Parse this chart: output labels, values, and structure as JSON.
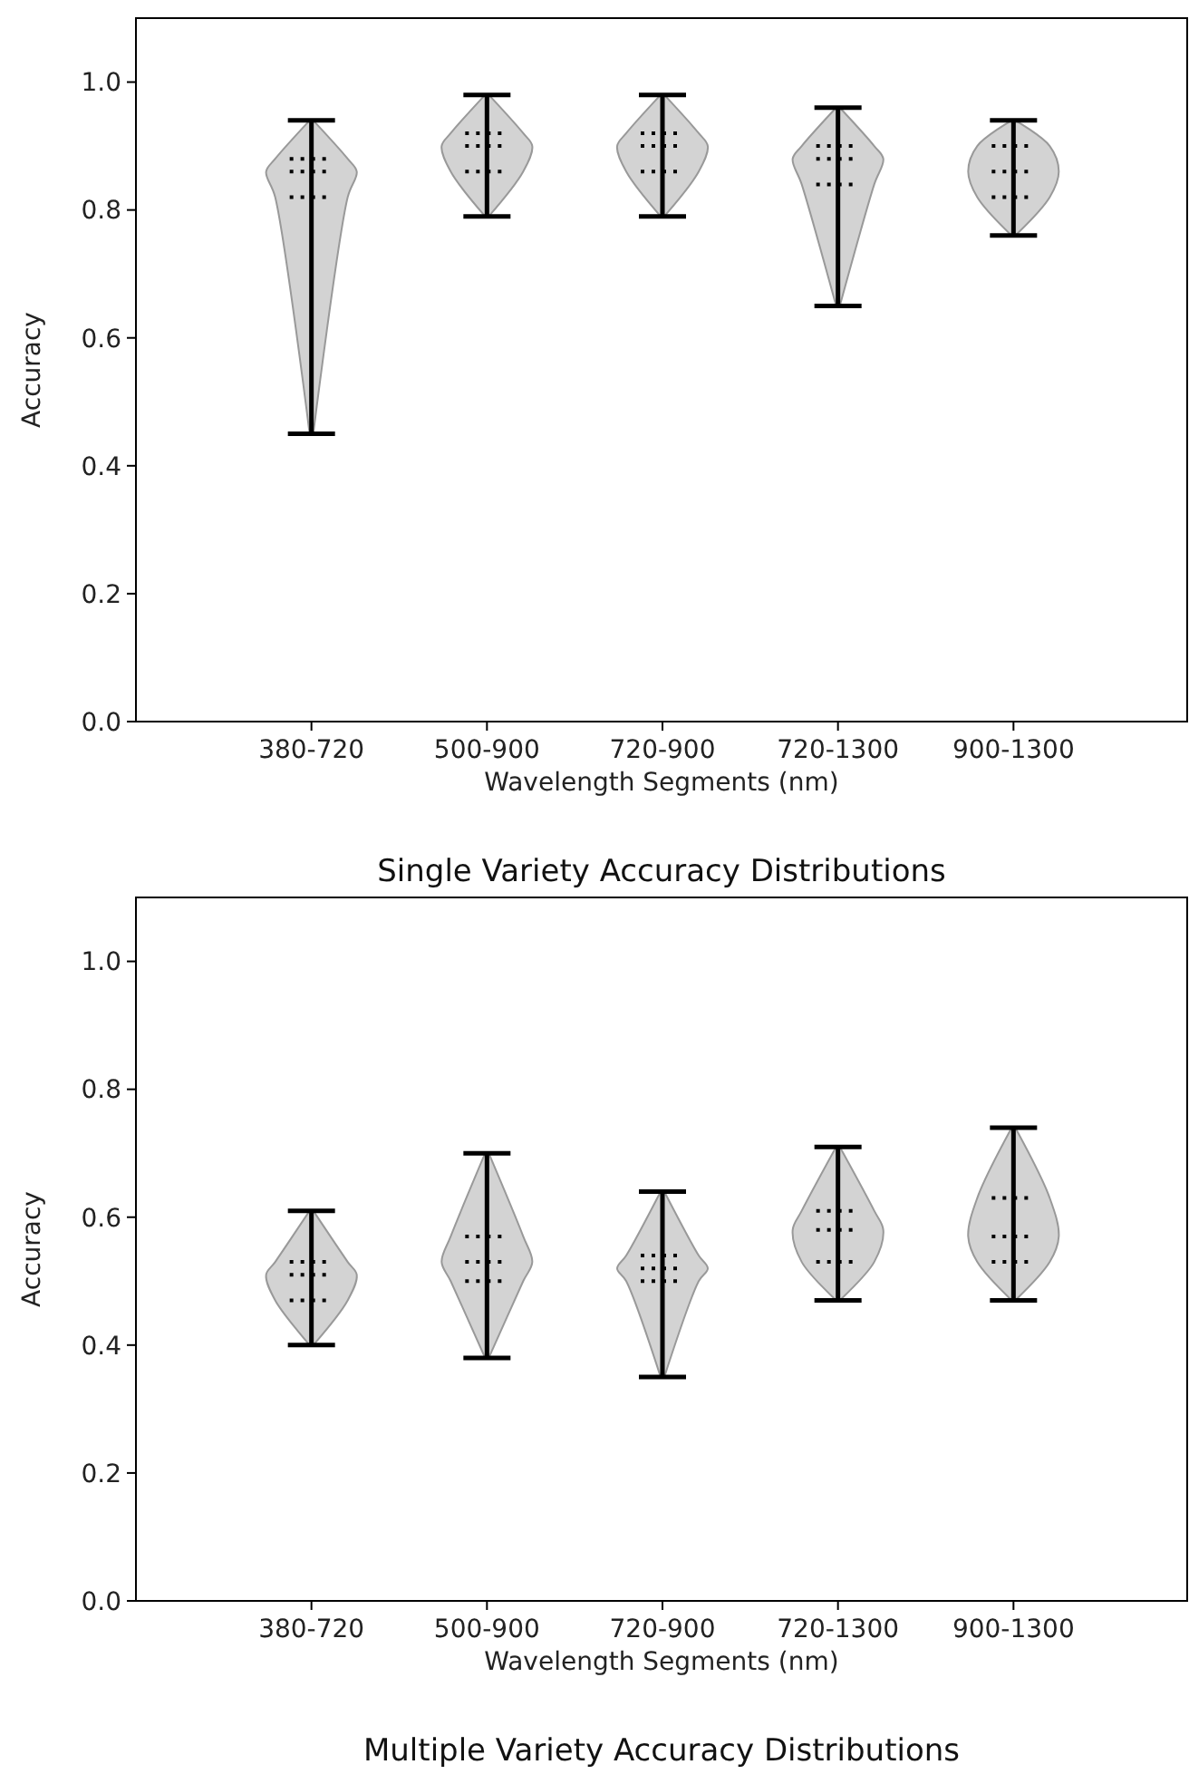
{
  "chart_data": [
    {
      "type": "box",
      "title": "Single Variety Accuracy Distributions",
      "xlabel": "Wavelength Segments (nm)",
      "ylabel": "Accuracy",
      "categories": [
        "380-720",
        "500-900",
        "720-900",
        "720-1300",
        "900-1300"
      ],
      "color": "#000000",
      "ylim": [
        0,
        1.1
      ],
      "yticks": [
        {
          "value": 0,
          "label": "0.0"
        },
        {
          "value": 0.2,
          "label": "0.2"
        },
        {
          "value": 0.4,
          "label": "0.4"
        },
        {
          "value": 0.6,
          "label": "0.6"
        },
        {
          "value": 0.8,
          "label": "0.8"
        },
        {
          "value": 1.0,
          "label": "1.0"
        }
      ],
      "boxes": [
        {
          "low": 0.45,
          "q1": 0.82,
          "median": 0.86,
          "q3": 0.88,
          "high": 0.94
        },
        {
          "low": 0.79,
          "q1": 0.86,
          "median": 0.9,
          "q3": 0.92,
          "high": 0.98
        },
        {
          "low": 0.79,
          "q1": 0.86,
          "median": 0.9,
          "q3": 0.92,
          "high": 0.98
        },
        {
          "low": 0.65,
          "q1": 0.84,
          "median": 0.88,
          "q3": 0.9,
          "high": 0.96
        },
        {
          "low": 0.76,
          "q1": 0.82,
          "median": 0.86,
          "q3": 0.9,
          "high": 0.94
        }
      ]
    },
    {
      "type": "box",
      "title": "Multiple Variety Accuracy Distributions",
      "xlabel": "Wavelength Segments (nm)",
      "ylabel": "Accuracy",
      "categories": [
        "380-720",
        "500-900",
        "720-900",
        "720-1300",
        "900-1300"
      ],
      "color": "#000000",
      "ylim": [
        0,
        1.1
      ],
      "yticks": [
        {
          "value": 0,
          "label": "0.0"
        },
        {
          "value": 0.2,
          "label": "0.2"
        },
        {
          "value": 0.4,
          "label": "0.4"
        },
        {
          "value": 0.6,
          "label": "0.6"
        },
        {
          "value": 0.8,
          "label": "0.8"
        },
        {
          "value": 1.0,
          "label": "1.0"
        }
      ],
      "boxes": [
        {
          "low": 0.4,
          "q1": 0.47,
          "median": 0.51,
          "q3": 0.53,
          "high": 0.61
        },
        {
          "low": 0.38,
          "q1": 0.5,
          "median": 0.53,
          "q3": 0.57,
          "high": 0.7
        },
        {
          "low": 0.35,
          "q1": 0.5,
          "median": 0.52,
          "q3": 0.54,
          "high": 0.64
        },
        {
          "low": 0.47,
          "q1": 0.53,
          "median": 0.58,
          "q3": 0.61,
          "high": 0.71
        },
        {
          "low": 0.47,
          "q1": 0.53,
          "median": 0.57,
          "q3": 0.63,
          "high": 0.74
        }
      ]
    }
  ]
}
